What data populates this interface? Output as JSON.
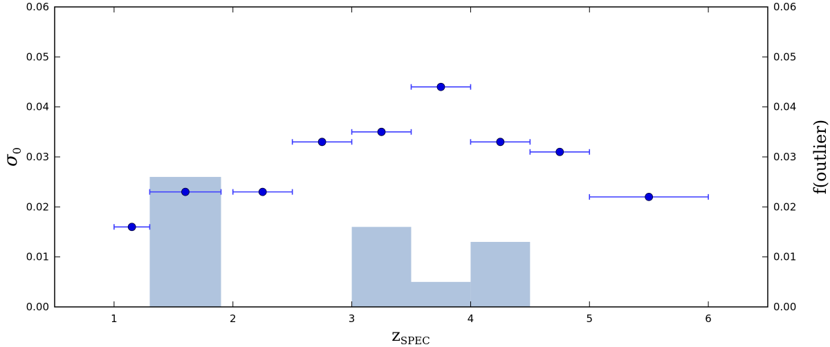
{
  "chart_data": {
    "type": "scatter",
    "title": "",
    "xlabel": "z",
    "xlabel_sub": "SPEC",
    "ylabel": "σ",
    "ylabel_sub": "0",
    "y2label": "f(outlier)",
    "xlim": [
      0.5,
      6.5
    ],
    "ylim": [
      0.0,
      0.06
    ],
    "y2lim": [
      0.0,
      0.06
    ],
    "xticks": [
      "1",
      "2",
      "3",
      "4",
      "5",
      "6"
    ],
    "xtick_values": [
      1,
      2,
      3,
      4,
      5,
      6
    ],
    "yticks": [
      "0.00",
      "0.01",
      "0.02",
      "0.03",
      "0.04",
      "0.05",
      "0.06"
    ],
    "ytick_values": [
      0.0,
      0.01,
      0.02,
      0.03,
      0.04,
      0.05,
      0.06
    ],
    "y2ticks": [
      "0.00",
      "0.01",
      "0.02",
      "0.03",
      "0.04",
      "0.05",
      "0.06"
    ],
    "grid": false,
    "colors": {
      "points": "#0000dd",
      "errorbars": "#3b3bff",
      "bars": "#b0c4de",
      "axes": "#000000"
    },
    "series": [
      {
        "type": "errorbar",
        "axis": "left",
        "points": [
          {
            "x": 1.15,
            "y": 0.016,
            "xmin": 1.0,
            "xmax": 1.3
          },
          {
            "x": 1.6,
            "y": 0.023,
            "xmin": 1.3,
            "xmax": 1.9
          },
          {
            "x": 2.25,
            "y": 0.023,
            "xmin": 2.0,
            "xmax": 2.5
          },
          {
            "x": 2.75,
            "y": 0.033,
            "xmin": 2.5,
            "xmax": 3.0
          },
          {
            "x": 3.25,
            "y": 0.035,
            "xmin": 3.0,
            "xmax": 3.5
          },
          {
            "x": 3.75,
            "y": 0.044,
            "xmin": 3.5,
            "xmax": 4.0
          },
          {
            "x": 4.25,
            "y": 0.033,
            "xmin": 4.0,
            "xmax": 4.5
          },
          {
            "x": 4.75,
            "y": 0.031,
            "xmin": 4.5,
            "xmax": 5.0
          },
          {
            "x": 5.5,
            "y": 0.022,
            "xmin": 5.0,
            "xmax": 6.0
          }
        ]
      },
      {
        "type": "bar",
        "axis": "right",
        "bars": [
          {
            "x0": 1.3,
            "x1": 1.9,
            "value": 0.026
          },
          {
            "x0": 3.0,
            "x1": 3.5,
            "value": 0.016
          },
          {
            "x0": 3.5,
            "x1": 4.0,
            "value": 0.005
          },
          {
            "x0": 4.0,
            "x1": 4.5,
            "value": 0.013
          }
        ]
      }
    ]
  }
}
